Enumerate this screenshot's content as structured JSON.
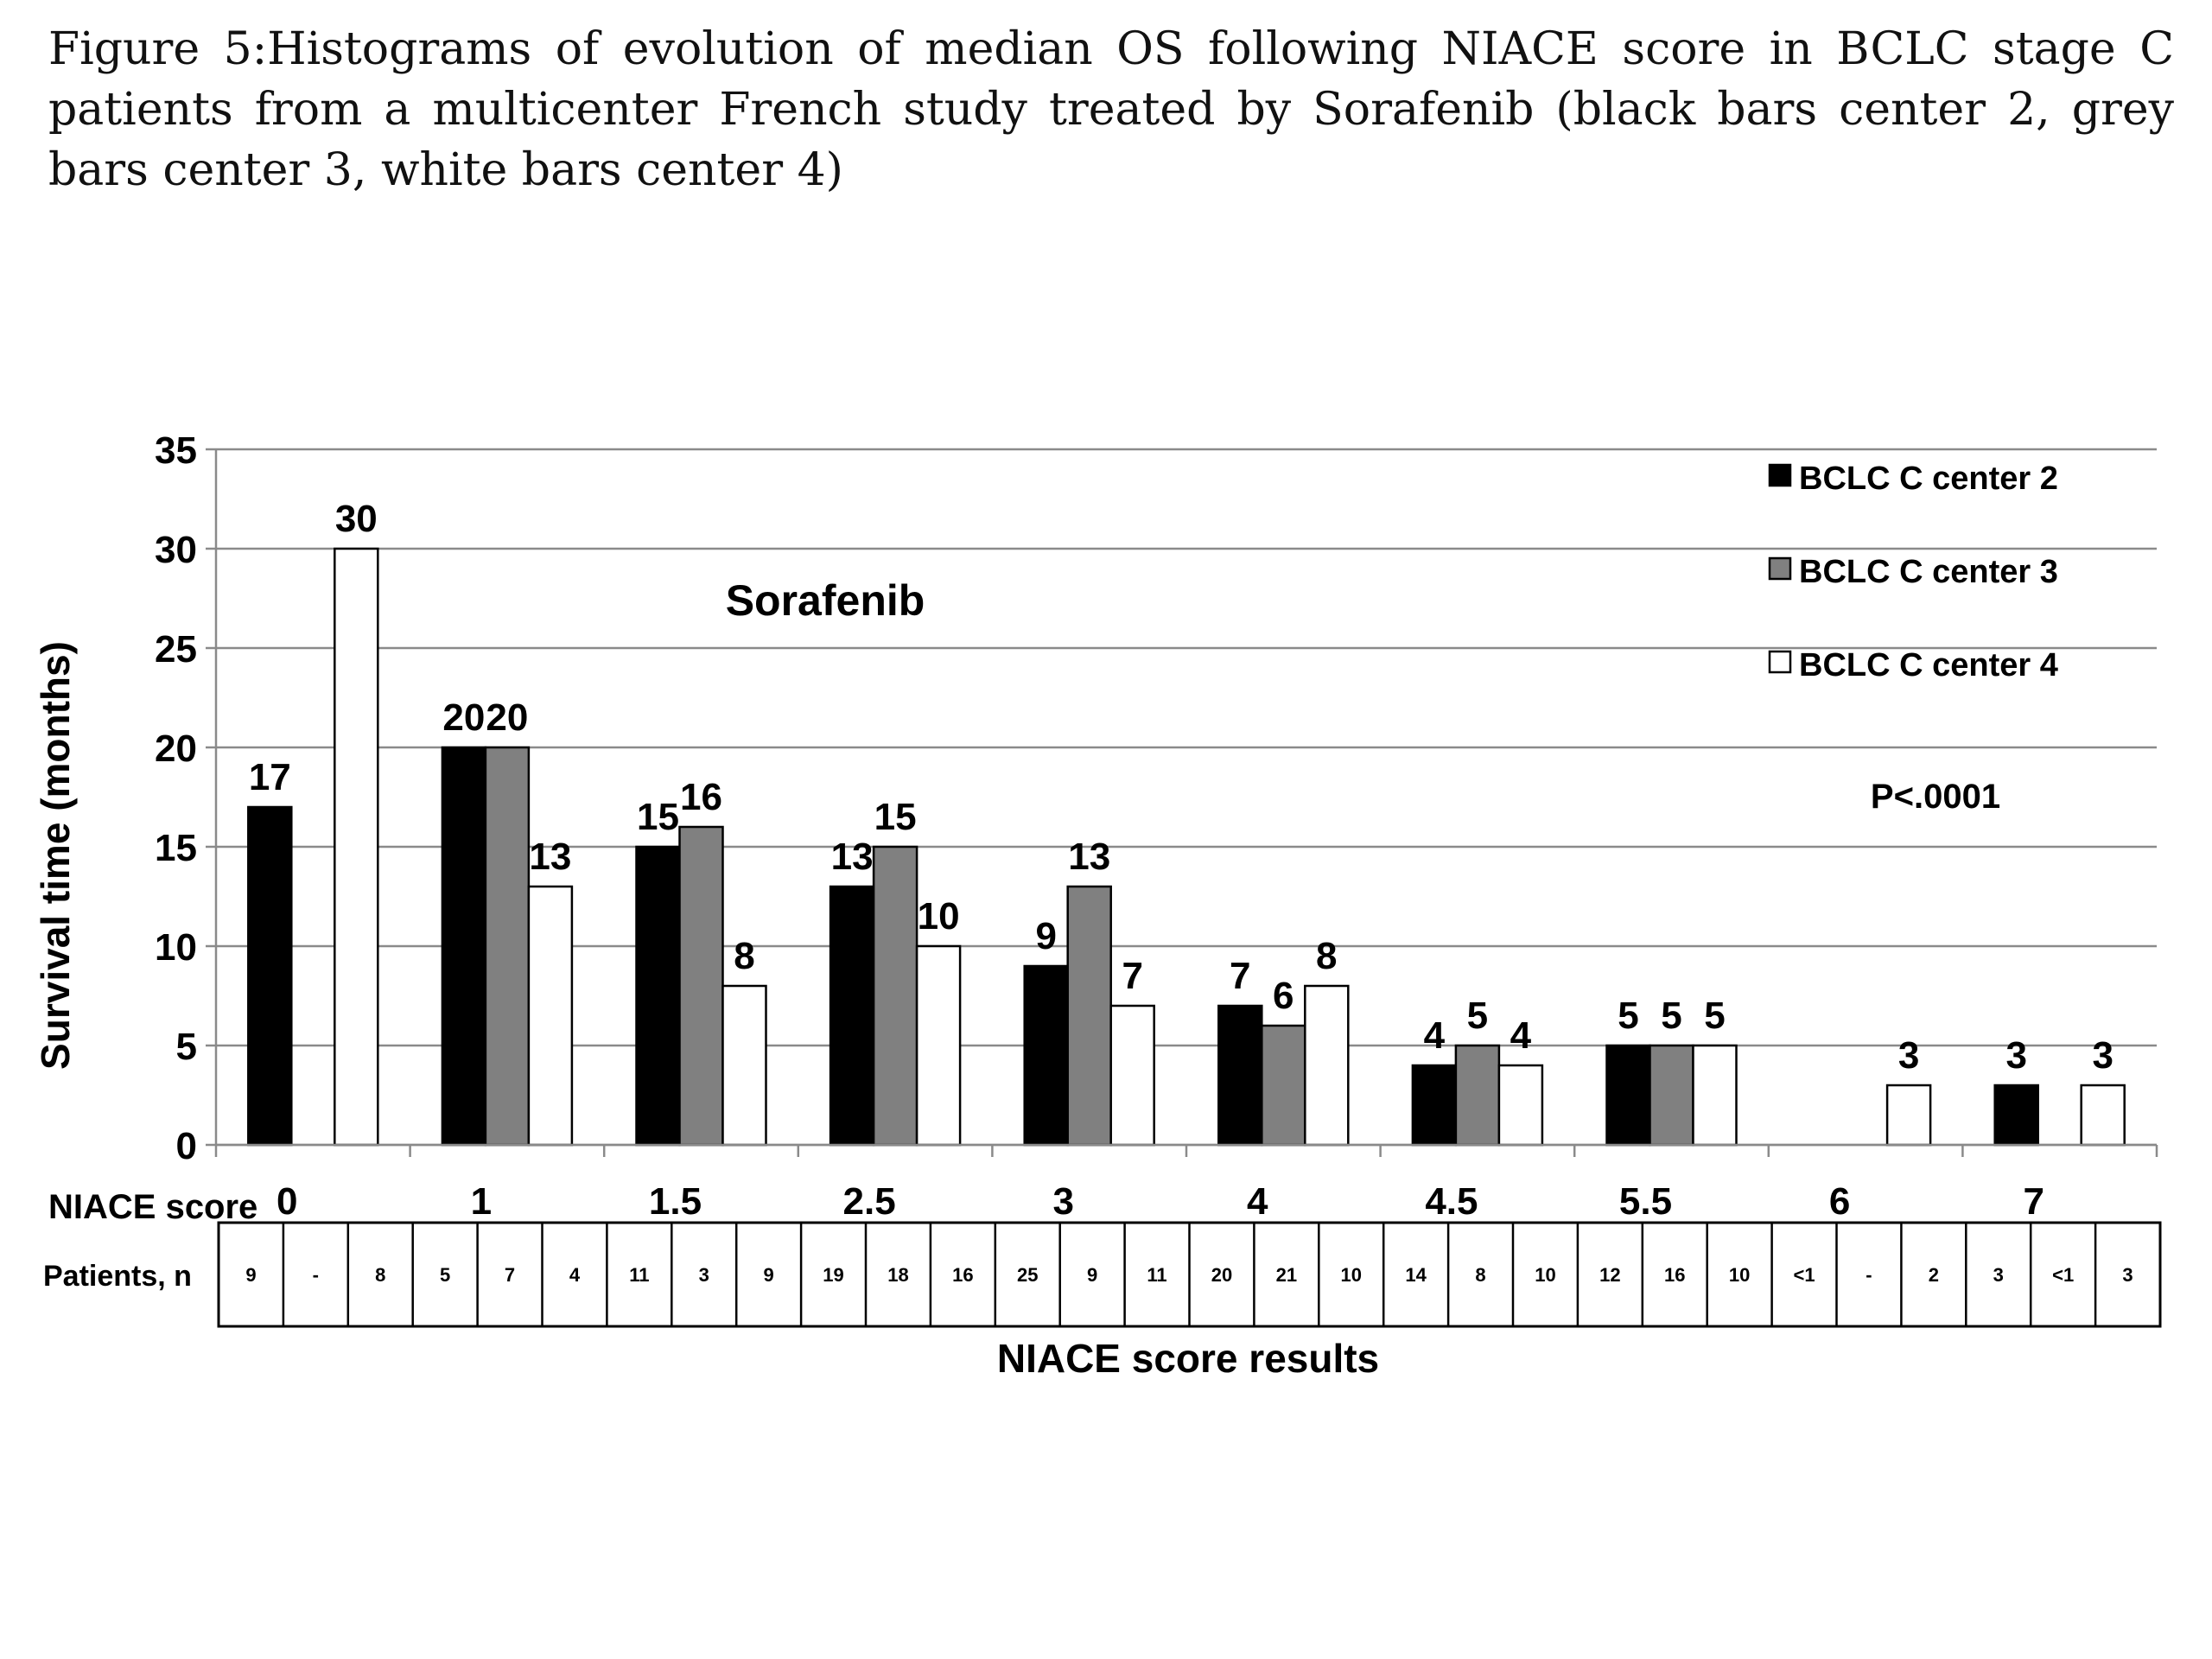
{
  "caption": "Figure 5:Histograms of evolution of median OS following NIACE score in BCLC stage C patients from a multicenter French study treated by Sorafenib (black bars center 2, grey bars center 3, white bars center 4)",
  "chart_data": {
    "type": "bar",
    "title": "Sorafenib",
    "annotation": "P<.0001",
    "ylabel": "Survival time (months)",
    "xlabel": "NIACE score results",
    "x_row_label": "NIACE score",
    "ylim": [
      0,
      35
    ],
    "yticks": [
      0,
      5,
      10,
      15,
      20,
      25,
      30,
      35
    ],
    "grid": true,
    "legend_position": "top-right",
    "categories": [
      "0",
      "1",
      "1.5",
      "2.5",
      "3",
      "4",
      "4.5",
      "5.5",
      "6",
      "7"
    ],
    "series": [
      {
        "name": "BCLC C center 2",
        "color": "#000000",
        "values": [
          17,
          20,
          15,
          13,
          9,
          7,
          4,
          5,
          null,
          3
        ]
      },
      {
        "name": "BCLC C center 3",
        "color": "#808080",
        "values": [
          null,
          20,
          16,
          15,
          13,
          6,
          5,
          5,
          null,
          null
        ]
      },
      {
        "name": "BCLC C center 4",
        "color": "#ffffff",
        "values": [
          30,
          13,
          8,
          10,
          7,
          8,
          4,
          5,
          3,
          3
        ]
      }
    ],
    "patients_table": {
      "label": "Patients, n",
      "values": [
        [
          "9",
          "-",
          "8"
        ],
        [
          "5",
          "7",
          "4"
        ],
        [
          "11",
          "3",
          "9"
        ],
        [
          "19",
          "18",
          "16"
        ],
        [
          "25",
          "9",
          "11"
        ],
        [
          "20",
          "21",
          "10"
        ],
        [
          "14",
          "8",
          "10"
        ],
        [
          "12",
          "16",
          "10"
        ],
        [
          "<1",
          "-",
          "2"
        ],
        [
          "3",
          "<1",
          "3"
        ]
      ]
    }
  }
}
